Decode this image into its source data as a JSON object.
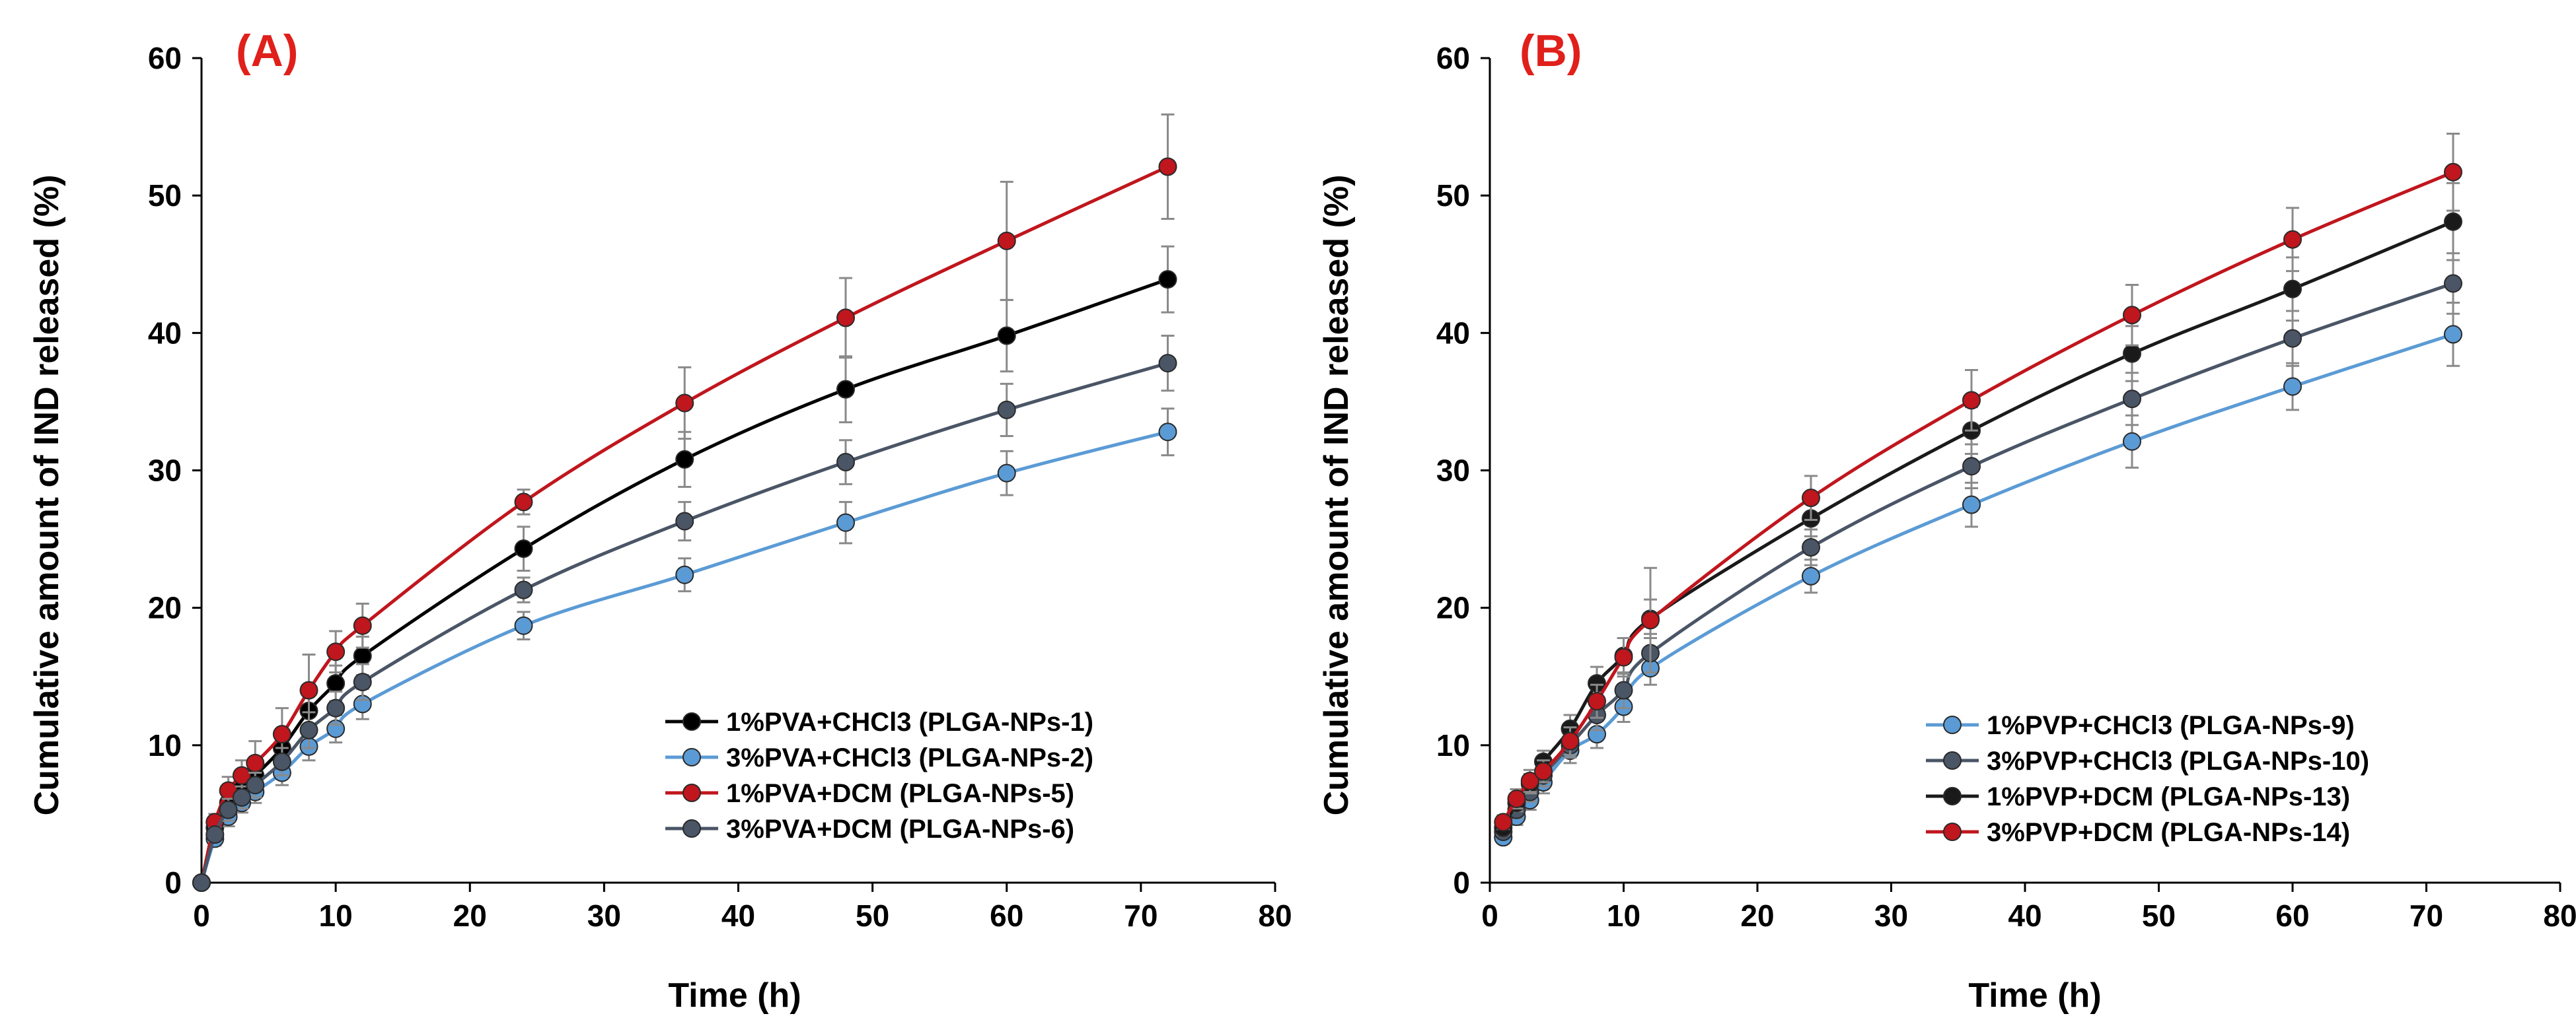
{
  "chart_data": [
    {
      "type": "line",
      "panel_label": "(A)",
      "label_color": "#e0201b",
      "xlabel": "Time (h)",
      "ylabel": "Cumulative amount of IND released (%)",
      "xlim": [
        0,
        80
      ],
      "ylim": [
        0,
        60
      ],
      "xticks": [
        "0",
        "10",
        "20",
        "30",
        "40",
        "50",
        "60",
        "70",
        "80"
      ],
      "yticks": [
        "0",
        "10",
        "20",
        "30",
        "40",
        "50",
        "60"
      ],
      "grid": false,
      "legend_position": "bottom-right",
      "x": [
        0,
        1,
        2,
        3,
        4,
        6,
        8,
        10,
        12,
        24,
        36,
        48,
        60,
        72
      ],
      "series": [
        {
          "name": "1%PVA+CHCl3 (PLGA-NPs-1)",
          "color": "#000000",
          "values": [
            0,
            4.0,
            5.8,
            6.9,
            7.8,
            9.8,
            12.5,
            14.5,
            16.5,
            24.3,
            30.8,
            35.9,
            39.8,
            43.9
          ],
          "errors": [
            0,
            0.5,
            0.9,
            1.0,
            1.1,
            1.2,
            1.8,
            1.3,
            1.4,
            1.6,
            2.0,
            2.4,
            2.6,
            2.4
          ]
        },
        {
          "name": "3%PVA+CHCl3 (PLGA-NPs-2)",
          "color": "#5b9bd5",
          "values": [
            0,
            3.2,
            4.8,
            5.8,
            6.6,
            8.0,
            9.9,
            11.2,
            13.0,
            18.7,
            22.4,
            26.2,
            29.8,
            32.8
          ],
          "errors": [
            0,
            0.5,
            0.7,
            0.7,
            0.8,
            0.9,
            1.0,
            1.0,
            1.1,
            1.0,
            1.2,
            1.5,
            1.6,
            1.7
          ]
        },
        {
          "name": "1%PVA+DCM (PLGA-NPs-5)",
          "color": "#c0161d",
          "values": [
            0,
            4.4,
            6.7,
            7.8,
            8.7,
            10.8,
            14.0,
            16.8,
            18.7,
            27.7,
            34.9,
            41.1,
            46.7,
            52.1
          ],
          "errors": [
            0,
            0.6,
            1.0,
            1.1,
            1.6,
            1.9,
            2.6,
            1.5,
            1.6,
            0.9,
            2.6,
            2.9,
            4.3,
            3.8
          ]
        },
        {
          "name": "3%PVA+DCM (PLGA-NPs-6)",
          "color": "#4a5566",
          "values": [
            0,
            3.5,
            5.3,
            6.2,
            7.1,
            8.8,
            11.1,
            12.7,
            14.6,
            21.3,
            26.3,
            30.6,
            34.4,
            37.8
          ],
          "errors": [
            0,
            0.5,
            0.8,
            0.8,
            0.9,
            1.0,
            1.3,
            1.2,
            1.3,
            0.9,
            1.4,
            1.6,
            1.9,
            2.0
          ]
        }
      ]
    },
    {
      "type": "line",
      "panel_label": "(B)",
      "label_color": "#e0201b",
      "xlabel": "Time (h)",
      "ylabel": "Cumulative amount of IND released (%)",
      "xlim": [
        0,
        80
      ],
      "ylim": [
        0,
        60
      ],
      "xticks": [
        "0",
        "10",
        "20",
        "30",
        "40",
        "50",
        "60",
        "70",
        "80"
      ],
      "yticks": [
        "0",
        "10",
        "20",
        "30",
        "40",
        "50",
        "60"
      ],
      "grid": false,
      "legend_position": "bottom-right",
      "x": [
        1,
        2,
        3,
        4,
        6,
        8,
        10,
        12,
        24,
        36,
        48,
        60,
        72
      ],
      "series": [
        {
          "name": "1%PVP+CHCl3 (PLGA-NPs-9)",
          "color": "#5b9bd5",
          "values": [
            3.3,
            4.8,
            6.0,
            7.3,
            9.6,
            10.8,
            12.8,
            15.6,
            22.3,
            27.5,
            32.1,
            36.1,
            39.9
          ],
          "errors": [
            0.4,
            0.6,
            0.7,
            0.8,
            0.9,
            1.0,
            1.1,
            1.2,
            1.2,
            1.6,
            1.9,
            1.7,
            2.3
          ]
        },
        {
          "name": "3%PVP+CHCl3 (PLGA-NPs-10)",
          "color": "#4a5566",
          "values": [
            3.7,
            5.3,
            6.6,
            7.8,
            10.0,
            12.2,
            14.0,
            16.7,
            24.4,
            30.3,
            35.2,
            39.6,
            43.6
          ],
          "errors": [
            0.4,
            0.6,
            0.7,
            0.8,
            0.9,
            1.1,
            1.3,
            1.4,
            1.3,
            1.6,
            1.9,
            2.0,
            2.2
          ]
        },
        {
          "name": "1%PVP+DCM (PLGA-NPs-13)",
          "color": "#1a1a1a",
          "values": [
            4.0,
            5.8,
            7.2,
            8.8,
            11.2,
            14.5,
            16.5,
            19.2,
            26.5,
            32.9,
            38.5,
            43.2,
            48.1
          ],
          "errors": [
            0.5,
            0.6,
            0.7,
            0.8,
            1.0,
            1.2,
            1.3,
            1.4,
            1.3,
            1.7,
            2.0,
            2.3,
            2.8
          ]
        },
        {
          "name": "3%PVP+DCM (PLGA-NPs-14)",
          "color": "#c0161d",
          "values": [
            4.4,
            6.1,
            7.4,
            8.1,
            10.3,
            13.2,
            16.4,
            19.1,
            28.0,
            35.1,
            41.3,
            46.8,
            51.7
          ],
          "errors": [
            0.5,
            0.7,
            0.8,
            0.8,
            1.0,
            1.2,
            1.4,
            3.8,
            1.6,
            2.2,
            2.2,
            2.3,
            2.8
          ]
        }
      ]
    }
  ]
}
